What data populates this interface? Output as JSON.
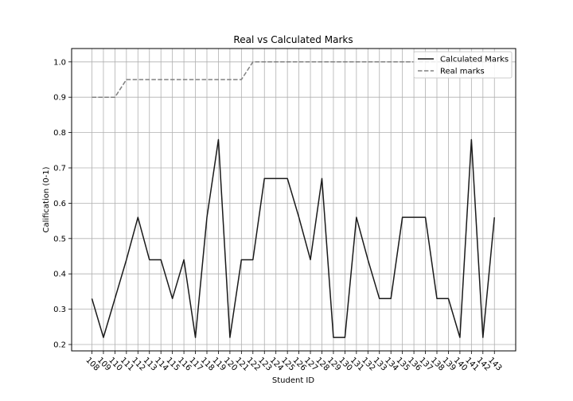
{
  "chart_data": {
    "type": "line",
    "title": "Real vs Calculated Marks",
    "xlabel": "Student ID",
    "ylabel": "Calification (0-1)",
    "ylim": [
      0.18,
      1.04
    ],
    "yticks": [
      0.2,
      0.3,
      0.4,
      0.5,
      0.6,
      0.7,
      0.8,
      0.9,
      1.0
    ],
    "grid": true,
    "legend_position": "top-right",
    "categories": [
      "108",
      "109",
      "110",
      "111",
      "112",
      "113",
      "114",
      "115",
      "116",
      "117",
      "118",
      "119",
      "120",
      "121",
      "122",
      "123",
      "124",
      "125",
      "126",
      "127",
      "128",
      "129",
      "130",
      "131",
      "132",
      "133",
      "134",
      "135",
      "136",
      "137",
      "138",
      "139",
      "140",
      "141",
      "142",
      "143"
    ],
    "series": [
      {
        "name": "Calculated Marks",
        "color": "#1a1a1a",
        "style": "solid",
        "values": [
          0.33,
          0.22,
          0.33,
          0.44,
          0.56,
          0.44,
          0.44,
          0.33,
          0.44,
          0.22,
          0.56,
          0.78,
          0.22,
          0.44,
          0.44,
          0.67,
          0.67,
          0.67,
          0.56,
          0.44,
          0.67,
          0.22,
          0.22,
          0.56,
          0.44,
          0.33,
          0.33,
          0.56,
          0.56,
          0.56,
          0.33,
          0.33,
          0.22,
          0.78,
          0.22,
          0.56
        ]
      },
      {
        "name": "Real marks",
        "color": "#808080",
        "style": "dashed",
        "values": [
          0.9,
          0.9,
          0.9,
          0.95,
          0.95,
          0.95,
          0.95,
          0.95,
          0.95,
          0.95,
          0.95,
          0.95,
          0.95,
          0.95,
          1.0,
          1.0,
          1.0,
          1.0,
          1.0,
          1.0,
          1.0,
          1.0,
          1.0,
          1.0,
          1.0,
          1.0,
          1.0,
          1.0,
          1.0,
          1.0,
          1.0,
          1.0,
          1.0,
          1.0,
          1.0,
          1.0
        ]
      }
    ]
  }
}
